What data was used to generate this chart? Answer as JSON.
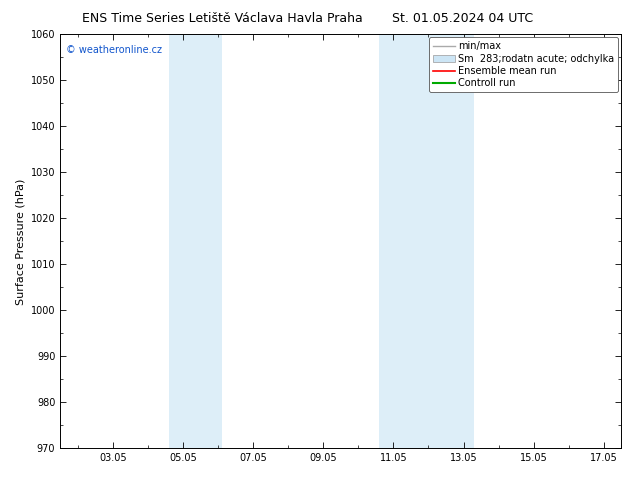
{
  "title_left": "ENS Time Series Letiště Václava Havla Praha",
  "title_right": "St. 01.05.2024 04 UTC",
  "ylabel": "Surface Pressure (hPa)",
  "ylim": [
    970,
    1060
  ],
  "yticks": [
    970,
    980,
    990,
    1000,
    1010,
    1020,
    1030,
    1040,
    1050,
    1060
  ],
  "xtick_labels": [
    "03.05",
    "05.05",
    "07.05",
    "09.05",
    "11.05",
    "13.05",
    "15.05",
    "17.05"
  ],
  "xtick_positions": [
    3,
    5,
    7,
    9,
    11,
    13,
    15,
    17
  ],
  "xlim": [
    1.5,
    17.5
  ],
  "shaded_bands": [
    {
      "xstart": 4.6,
      "xend": 6.1,
      "color": "#ddeef8"
    },
    {
      "xstart": 10.6,
      "xend": 13.3,
      "color": "#ddeef8"
    }
  ],
  "watermark": "© weatheronline.cz",
  "legend_labels": [
    "min/max",
    "Sm  283;rodatn acute; odchylka",
    "Ensemble mean run",
    "Controll run"
  ],
  "legend_colors": [
    "#aaaaaa",
    "#cce5f5",
    "#ff0000",
    "#00aa00"
  ],
  "title_fontsize": 9,
  "tick_fontsize": 7,
  "ylabel_fontsize": 8,
  "legend_fontsize": 7,
  "watermark_fontsize": 7,
  "bg_color": "#ffffff",
  "plot_bg_color": "#ffffff",
  "border_color": "#000000"
}
